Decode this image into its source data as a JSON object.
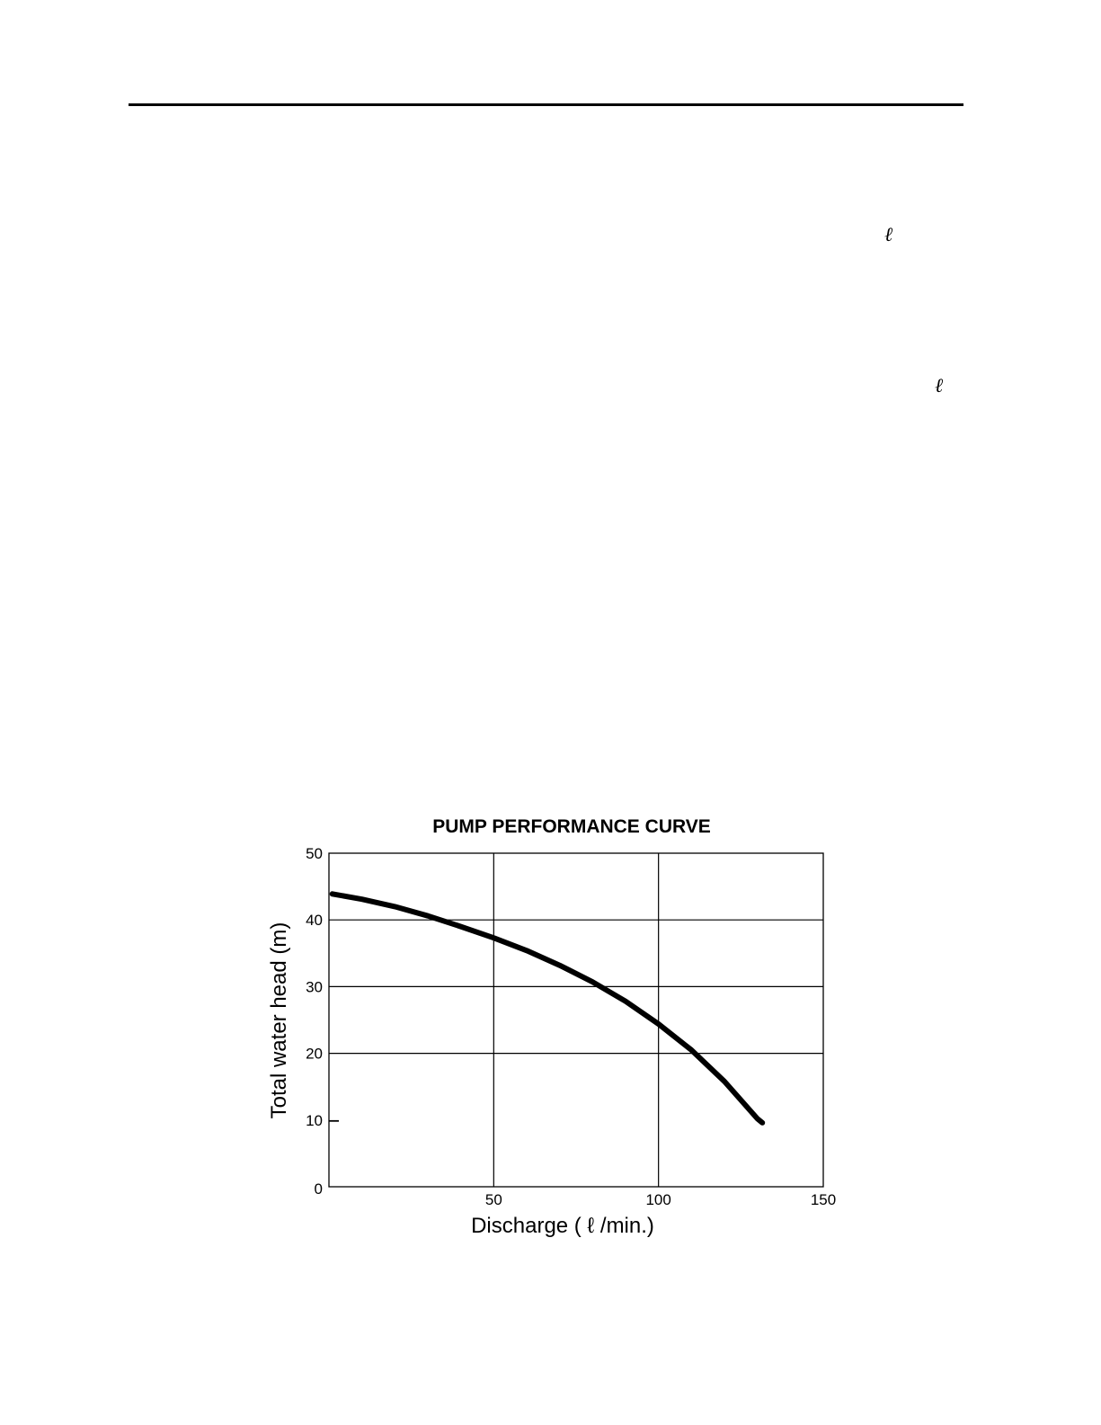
{
  "page": {
    "glyph_1": "ℓ",
    "glyph_2": "ℓ"
  },
  "chart_data": {
    "type": "line",
    "title": "PUMP PERFORMANCE CURVE",
    "xlabel": "Discharge ( ℓ /min.)",
    "ylabel": "Total water head (m)",
    "xlim": [
      0,
      150
    ],
    "ylim": [
      0,
      50
    ],
    "grid": true,
    "x_ticks": [
      50,
      100,
      150
    ],
    "y_ticks": [
      0,
      10,
      20,
      30,
      40,
      50
    ],
    "series": [
      {
        "x": [
          1,
          10,
          20,
          30,
          40,
          50,
          60,
          70,
          80,
          90,
          100,
          110,
          120,
          130,
          131.5
        ],
        "values": [
          43.9,
          43.1,
          42.0,
          40.6,
          39.0,
          37.3,
          35.4,
          33.2,
          30.7,
          27.8,
          24.4,
          20.5,
          15.8,
          10.2,
          9.6
        ]
      }
    ],
    "colors": {
      "line": "#000000",
      "grid": "#000000"
    }
  }
}
